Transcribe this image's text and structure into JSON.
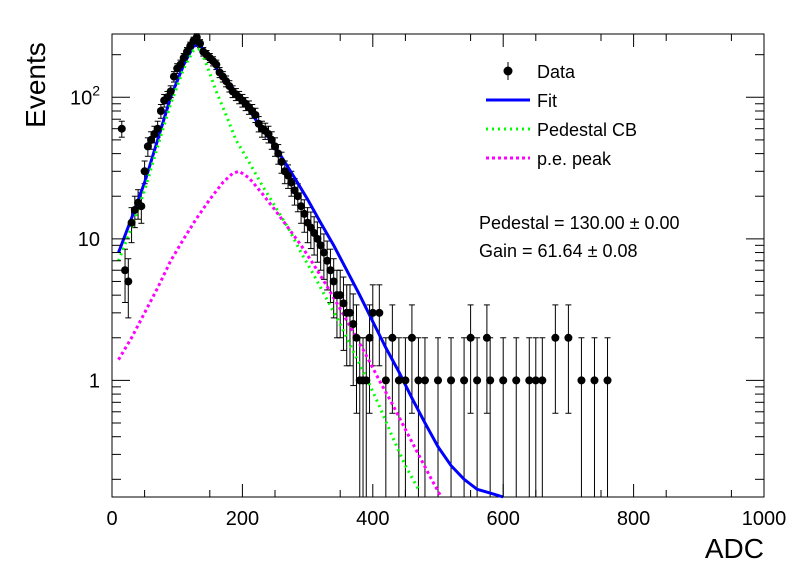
{
  "chart_data": {
    "type": "scatter",
    "title": "",
    "xlabel": "ADC",
    "ylabel": "Events",
    "xlim": [
      0,
      1000
    ],
    "ylim": [
      0.15,
      280
    ],
    "ylog": true,
    "grid": false,
    "legend_position": "top-right",
    "x_ticks": [
      {
        "v": 0,
        "label": "0"
      },
      {
        "v": 200,
        "label": "200"
      },
      {
        "v": 400,
        "label": "400"
      },
      {
        "v": 600,
        "label": "600"
      },
      {
        "v": 800,
        "label": "800"
      },
      {
        "v": 1000,
        "label": "1000"
      }
    ],
    "y_ticks": [
      {
        "v": 1,
        "base": "1",
        "exp": ""
      },
      {
        "v": 10,
        "base": "10",
        "exp": ""
      },
      {
        "v": 100,
        "base": "10",
        "exp": "2"
      }
    ],
    "legend": [
      {
        "key": "data",
        "label": "Data"
      },
      {
        "key": "fit",
        "label": "Fit"
      },
      {
        "key": "pedestal",
        "label": "Pedestal CB"
      },
      {
        "key": "pe",
        "label": "p.e. peak"
      }
    ],
    "stats": [
      {
        "label": "Pedestal = 130.00",
        "pm": "±",
        "err": "0.00"
      },
      {
        "label": "Gain = 61.64",
        "pm": "±",
        "err": "0.08"
      }
    ],
    "colors": {
      "data": "#000000",
      "fit": "#0000ff",
      "pedestal": "#00ff00",
      "pe": "#ff00ff",
      "errorbar": "#000000"
    },
    "series": [
      {
        "name": "Data",
        "points": [
          [
            15,
            60
          ],
          [
            20,
            6
          ],
          [
            25,
            5
          ],
          [
            30,
            13
          ],
          [
            35,
            16
          ],
          [
            40,
            18
          ],
          [
            45,
            17
          ],
          [
            50,
            30
          ],
          [
            55,
            45
          ],
          [
            60,
            50
          ],
          [
            65,
            55
          ],
          [
            70,
            60
          ],
          [
            75,
            80
          ],
          [
            80,
            95
          ],
          [
            85,
            100
          ],
          [
            90,
            110
          ],
          [
            95,
            140
          ],
          [
            100,
            160
          ],
          [
            105,
            170
          ],
          [
            110,
            190
          ],
          [
            115,
            210
          ],
          [
            120,
            230
          ],
          [
            125,
            250
          ],
          [
            130,
            265
          ],
          [
            135,
            240
          ],
          [
            140,
            210
          ],
          [
            145,
            200
          ],
          [
            150,
            190
          ],
          [
            155,
            180
          ],
          [
            160,
            170
          ],
          [
            165,
            150
          ],
          [
            170,
            140
          ],
          [
            175,
            130
          ],
          [
            180,
            120
          ],
          [
            185,
            110
          ],
          [
            190,
            105
          ],
          [
            195,
            100
          ],
          [
            200,
            95
          ],
          [
            205,
            90
          ],
          [
            210,
            85
          ],
          [
            215,
            80
          ],
          [
            220,
            75
          ],
          [
            225,
            65
          ],
          [
            230,
            60
          ],
          [
            235,
            58
          ],
          [
            240,
            55
          ],
          [
            245,
            50
          ],
          [
            250,
            45
          ],
          [
            255,
            40
          ],
          [
            260,
            35
          ],
          [
            265,
            30
          ],
          [
            270,
            28
          ],
          [
            275,
            25
          ],
          [
            280,
            22
          ],
          [
            285,
            20
          ],
          [
            290,
            17
          ],
          [
            295,
            15
          ],
          [
            300,
            13
          ],
          [
            305,
            12
          ],
          [
            310,
            11
          ],
          [
            315,
            10
          ],
          [
            320,
            9
          ],
          [
            325,
            8
          ],
          [
            330,
            7
          ],
          [
            335,
            6
          ],
          [
            340,
            5
          ],
          [
            345,
            4
          ],
          [
            350,
            4
          ],
          [
            355,
            3.5
          ],
          [
            360,
            3
          ],
          [
            365,
            3
          ],
          [
            370,
            2.5
          ],
          [
            375,
            2
          ],
          [
            380,
            1
          ],
          [
            385,
            1
          ],
          [
            390,
            1
          ],
          [
            395,
            2
          ],
          [
            400,
            3
          ],
          [
            410,
            3
          ],
          [
            420,
            1
          ],
          [
            430,
            2
          ],
          [
            440,
            1
          ],
          [
            450,
            1
          ],
          [
            460,
            2
          ],
          [
            470,
            1
          ],
          [
            480,
            1
          ],
          [
            500,
            1
          ],
          [
            520,
            1
          ],
          [
            540,
            1
          ],
          [
            550,
            2
          ],
          [
            560,
            1
          ],
          [
            575,
            2
          ],
          [
            580,
            1
          ],
          [
            600,
            1
          ],
          [
            620,
            1
          ],
          [
            640,
            1
          ],
          [
            650,
            1
          ],
          [
            660,
            1
          ],
          [
            680,
            2
          ],
          [
            700,
            2
          ],
          [
            720,
            1
          ],
          [
            740,
            1
          ],
          [
            760,
            1
          ]
        ]
      },
      {
        "name": "Fit",
        "points": [
          [
            10,
            8
          ],
          [
            30,
            14
          ],
          [
            50,
            25
          ],
          [
            70,
            50
          ],
          [
            90,
            100
          ],
          [
            110,
            170
          ],
          [
            125,
            230
          ],
          [
            135,
            235
          ],
          [
            145,
            200
          ],
          [
            160,
            160
          ],
          [
            180,
            125
          ],
          [
            200,
            95
          ],
          [
            220,
            70
          ],
          [
            240,
            52
          ],
          [
            260,
            38
          ],
          [
            280,
            27
          ],
          [
            300,
            19
          ],
          [
            320,
            13
          ],
          [
            340,
            9
          ],
          [
            360,
            6
          ],
          [
            380,
            4
          ],
          [
            400,
            2.6
          ],
          [
            420,
            1.7
          ],
          [
            440,
            1.15
          ],
          [
            460,
            0.75
          ],
          [
            480,
            0.5
          ],
          [
            500,
            0.34
          ],
          [
            520,
            0.25
          ],
          [
            540,
            0.2
          ],
          [
            560,
            0.17
          ],
          [
            580,
            0.16
          ],
          [
            600,
            0.15
          ]
        ]
      },
      {
        "name": "Pedestal CB",
        "points": [
          [
            10,
            7
          ],
          [
            30,
            12
          ],
          [
            50,
            22
          ],
          [
            70,
            45
          ],
          [
            90,
            90
          ],
          [
            110,
            160
          ],
          [
            125,
            215
          ],
          [
            135,
            220
          ],
          [
            145,
            170
          ],
          [
            160,
            110
          ],
          [
            175,
            75
          ],
          [
            190,
            50
          ],
          [
            210,
            35
          ],
          [
            230,
            24
          ],
          [
            250,
            17
          ],
          [
            270,
            12
          ],
          [
            290,
            8
          ],
          [
            310,
            5.5
          ],
          [
            330,
            3.7
          ],
          [
            350,
            2.5
          ],
          [
            370,
            1.6
          ],
          [
            390,
            1.05
          ],
          [
            410,
            0.66
          ],
          [
            430,
            0.4
          ],
          [
            450,
            0.25
          ],
          [
            470,
            0.17
          ]
        ]
      },
      {
        "name": "p.e. peak",
        "points": [
          [
            10,
            1.4
          ],
          [
            30,
            2
          ],
          [
            50,
            3
          ],
          [
            70,
            4.5
          ],
          [
            90,
            7
          ],
          [
            110,
            10
          ],
          [
            130,
            14
          ],
          [
            150,
            19
          ],
          [
            170,
            25
          ],
          [
            185,
            29
          ],
          [
            195,
            30
          ],
          [
            210,
            27
          ],
          [
            230,
            21
          ],
          [
            250,
            16
          ],
          [
            270,
            12
          ],
          [
            290,
            9
          ],
          [
            310,
            6.5
          ],
          [
            330,
            4.6
          ],
          [
            350,
            3.2
          ],
          [
            370,
            2.2
          ],
          [
            390,
            1.5
          ],
          [
            410,
            1.0
          ],
          [
            430,
            0.68
          ],
          [
            450,
            0.45
          ],
          [
            470,
            0.3
          ],
          [
            490,
            0.2
          ],
          [
            505,
            0.15
          ]
        ]
      }
    ]
  }
}
